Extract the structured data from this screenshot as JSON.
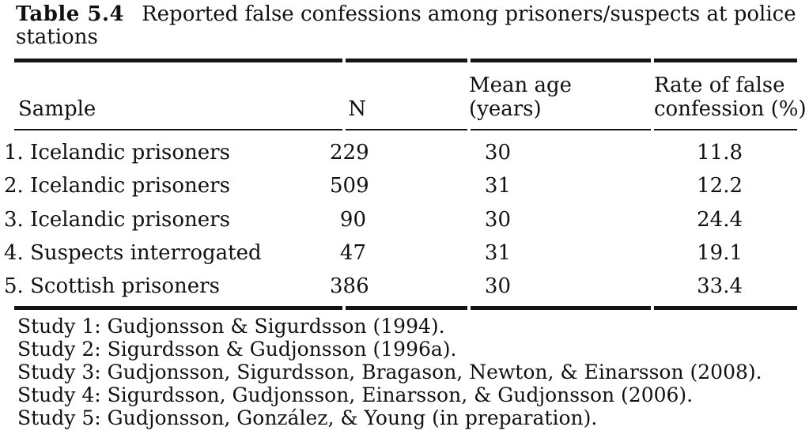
{
  "title": {
    "label": "Table 5.4",
    "text_line1": "Reported false confessions among prisoners/suspects at police",
    "text_line2": "stations"
  },
  "table": {
    "header": {
      "sample": "Sample",
      "n": "N",
      "mean_age_line1": "Mean age",
      "mean_age_line2": "(years)",
      "rate_line1": "Rate of false",
      "rate_line2": "confession (%)"
    },
    "rows": [
      {
        "sample": "1. Icelandic prisoners",
        "n": "229",
        "mean_age": "30",
        "rate": "11.8"
      },
      {
        "sample": "2. Icelandic prisoners",
        "n": "509",
        "mean_age": "31",
        "rate": "12.2"
      },
      {
        "sample": "3. Icelandic prisoners",
        "n": "90",
        "mean_age": "30",
        "rate": "24.4"
      },
      {
        "sample": "4. Suspects interrogated",
        "n": "47",
        "mean_age": "31",
        "rate": "19.1"
      },
      {
        "sample": "5. Scottish prisoners",
        "n": "386",
        "mean_age": "30",
        "rate": "33.4"
      }
    ]
  },
  "footnotes": [
    "Study 1: Gudjonsson & Sigurdsson (1994).",
    "Study 2: Sigurdsson & Gudjonsson (1996a).",
    "Study 3: Gudjonsson, Sigurdsson, Bragason, Newton, & Einarsson (2008).",
    "Study 4: Sigurdsson, Gudjonsson, Einarsson, & Gudjonsson (2006).",
    "Study 5: Gudjonsson, González, & Young (in preparation)."
  ]
}
